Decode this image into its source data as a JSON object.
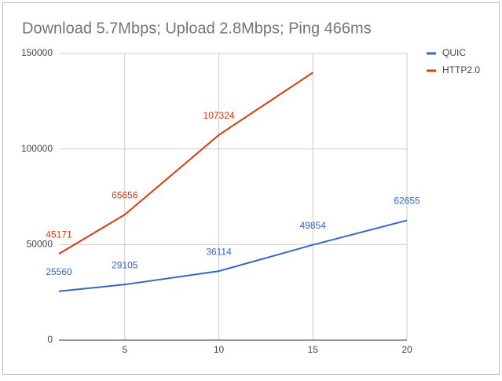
{
  "chart_data": {
    "type": "line",
    "title": "Download 5.7Mbps; Upload 2.8Mbps; Ping 466ms",
    "x": [
      1.5,
      5,
      10,
      15,
      20
    ],
    "series": [
      {
        "name": "QUIC",
        "color": "#3366cc",
        "values": [
          25560,
          29105,
          36114,
          49854,
          62655
        ],
        "value_labels": [
          "25560",
          "29105",
          "36114",
          "49854",
          "62655"
        ]
      },
      {
        "name": "HTTP2.0",
        "color": "#dc3912",
        "values": [
          45171,
          65656,
          107324,
          140000,
          null
        ],
        "value_labels": [
          "45171",
          "65656",
          "107324",
          null,
          null
        ]
      }
    ],
    "xlim": [
      1.5,
      20
    ],
    "xticks": [
      5,
      10,
      15,
      20
    ],
    "ylim": [
      0,
      150000
    ],
    "yticks": [
      0,
      50000,
      100000,
      150000
    ],
    "grid": true,
    "legend": "right"
  }
}
